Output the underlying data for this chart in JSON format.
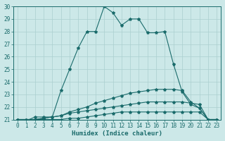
{
  "xlabel": "Humidex (Indice chaleur)",
  "xlim": [
    -0.5,
    23.5
  ],
  "ylim": [
    21,
    30
  ],
  "yticks": [
    21,
    22,
    23,
    24,
    25,
    26,
    27,
    28,
    29,
    30
  ],
  "xticks": [
    0,
    1,
    2,
    3,
    4,
    5,
    6,
    7,
    8,
    9,
    10,
    11,
    12,
    13,
    14,
    15,
    16,
    17,
    18,
    19,
    20,
    21,
    22,
    23
  ],
  "bg_color": "#cce8e8",
  "grid_color": "#aacfcf",
  "line_color": "#1a6b6b",
  "line1_y": [
    21,
    20.9,
    21.2,
    21.2,
    21.2,
    23.3,
    25.0,
    26.7,
    28.0,
    28.0,
    30.0,
    29.5,
    28.5,
    29.0,
    29.0,
    27.9,
    27.9,
    28.0,
    25.4,
    23.2,
    22.2,
    21.9,
    21.0,
    21.0
  ],
  "line2_y": [
    21,
    21,
    21,
    21.1,
    21.2,
    21.3,
    21.5,
    21.6,
    21.7,
    21.8,
    21.9,
    22.0,
    22.1,
    22.2,
    22.3,
    22.4,
    22.4,
    22.4,
    22.4,
    22.4,
    22.3,
    22.2,
    21.0,
    21.0
  ],
  "line3_y": [
    21,
    21,
    21,
    21,
    21,
    21,
    21.1,
    21.1,
    21.2,
    21.3,
    21.4,
    21.5,
    21.6,
    21.6,
    21.6,
    21.6,
    21.6,
    21.6,
    21.6,
    21.6,
    21.6,
    21.6,
    21.0,
    21.0
  ],
  "line4_y": [
    21,
    21,
    21,
    21.1,
    21.2,
    21.3,
    21.6,
    21.8,
    22.0,
    22.3,
    22.5,
    22.7,
    22.9,
    23.1,
    23.2,
    23.3,
    23.4,
    23.4,
    23.4,
    23.3,
    22.4,
    21.9,
    21.0,
    21.0
  ]
}
